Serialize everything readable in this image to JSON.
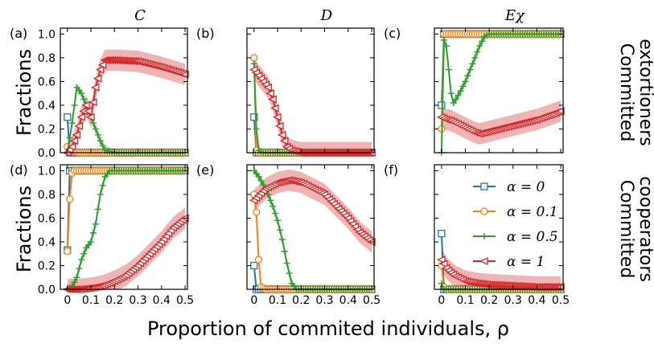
{
  "figure": {
    "col_titles": [
      "C",
      "D",
      "Eχ"
    ],
    "row_labels": [
      [
        "Committed",
        "extortioners"
      ],
      [
        "Committed",
        "cooperators"
      ]
    ],
    "ylabel": "Fractions",
    "xlabel": "Proportion of commited individuals, ρ",
    "colors": {
      "alpha_0": "#1f77b4",
      "alpha_0_1": "#ff7f0e",
      "alpha_0_5": "#2ca02c",
      "alpha_1": "#d62728"
    }
  },
  "chart_data": [
    {
      "panel": "(a)",
      "type": "line",
      "ylim": [
        0,
        1.05
      ],
      "xlim": [
        -0.03,
        0.51
      ],
      "xticks": [
        0,
        0.1,
        0.2,
        0.3,
        0.4,
        0.5
      ],
      "yticks": [
        0.0,
        0.2,
        0.4,
        0.6,
        0.8,
        1.0
      ],
      "series": [
        {
          "name": "α = 0",
          "x": [
            0,
            0.01,
            0.02,
            0.03,
            0.05,
            0.1,
            0.2,
            0.3,
            0.4,
            0.5
          ],
          "values": [
            0.3,
            0.0,
            0.0,
            0.0,
            0.0,
            0.0,
            0.0,
            0.0,
            0.0,
            0.0
          ]
        },
        {
          "name": "α = 0.1",
          "x": [
            0,
            0.01,
            0.02,
            0.05,
            0.1,
            0.2,
            0.3,
            0.4,
            0.5
          ],
          "values": [
            0.05,
            0.02,
            0.01,
            0.0,
            0.0,
            0.0,
            0.0,
            0.0,
            0.0
          ]
        },
        {
          "name": "α = 0.5",
          "x": [
            0,
            0.02,
            0.04,
            0.06,
            0.08,
            0.1,
            0.12,
            0.14,
            0.16,
            0.2,
            0.3,
            0.4,
            0.5
          ],
          "values": [
            0.0,
            0.25,
            0.55,
            0.5,
            0.4,
            0.3,
            0.2,
            0.1,
            0.02,
            0.0,
            0.0,
            0.0,
            0.0
          ]
        },
        {
          "name": "α = 1",
          "x": [
            0,
            0.02,
            0.04,
            0.06,
            0.08,
            0.1,
            0.12,
            0.14,
            0.16,
            0.2,
            0.3,
            0.4,
            0.5
          ],
          "values": [
            0.0,
            0.05,
            0.15,
            0.3,
            0.4,
            0.3,
            0.55,
            0.7,
            0.78,
            0.78,
            0.77,
            0.72,
            0.66
          ]
        }
      ]
    },
    {
      "panel": "(b)",
      "type": "line",
      "ylim": [
        0,
        1.05
      ],
      "xlim": [
        -0.03,
        0.51
      ],
      "xticks": [
        0,
        0.1,
        0.2,
        0.3,
        0.4,
        0.5
      ],
      "yticks": [
        0.0,
        0.2,
        0.4,
        0.6,
        0.8,
        1.0
      ],
      "series": [
        {
          "name": "α = 0",
          "x": [
            0,
            0.01,
            0.02,
            0.05,
            0.1,
            0.2,
            0.3,
            0.4,
            0.5
          ],
          "values": [
            0.3,
            0.0,
            0.0,
            0.0,
            0.0,
            0.0,
            0.0,
            0.0,
            0.0
          ]
        },
        {
          "name": "α = 0.1",
          "x": [
            0,
            0.01,
            0.02,
            0.05,
            0.1,
            0.2,
            0.3,
            0.4,
            0.5
          ],
          "values": [
            0.8,
            0.02,
            0.0,
            0.0,
            0.0,
            0.0,
            0.0,
            0.0,
            0.0
          ]
        },
        {
          "name": "α = 0.5",
          "x": [
            0,
            0.01,
            0.02,
            0.04,
            0.06,
            0.08,
            0.1,
            0.2,
            0.3,
            0.4,
            0.5
          ],
          "values": [
            0.75,
            0.2,
            0.02,
            0.0,
            0.0,
            0.0,
            0.0,
            0.0,
            0.0,
            0.0,
            0.0
          ]
        },
        {
          "name": "α = 1",
          "x": [
            0,
            0.02,
            0.04,
            0.06,
            0.08,
            0.1,
            0.12,
            0.14,
            0.16,
            0.2,
            0.3,
            0.4,
            0.5
          ],
          "values": [
            0.7,
            0.65,
            0.6,
            0.55,
            0.45,
            0.3,
            0.15,
            0.05,
            0.02,
            0.0,
            0.0,
            0.0,
            0.0
          ]
        }
      ]
    },
    {
      "panel": "(c)",
      "type": "line",
      "ylim": [
        0,
        1.05
      ],
      "xlim": [
        -0.03,
        0.51
      ],
      "xticks": [
        0,
        0.1,
        0.2,
        0.3,
        0.4,
        0.5
      ],
      "yticks": [
        0.0,
        0.2,
        0.4,
        0.6,
        0.8,
        1.0
      ],
      "series": [
        {
          "name": "α = 0",
          "x": [
            0,
            0.01,
            0.02,
            0.05,
            0.1,
            0.2,
            0.3,
            0.4,
            0.5
          ],
          "values": [
            0.4,
            1.0,
            1.0,
            1.0,
            1.0,
            1.0,
            1.0,
            1.0,
            1.0
          ]
        },
        {
          "name": "α = 0.1",
          "x": [
            0,
            0.01,
            0.02,
            0.05,
            0.1,
            0.2,
            0.3,
            0.4,
            0.5
          ],
          "values": [
            0.2,
            1.0,
            1.0,
            1.0,
            1.0,
            1.0,
            1.0,
            1.0,
            1.0
          ]
        },
        {
          "name": "α = 0.5",
          "x": [
            0,
            0.01,
            0.02,
            0.03,
            0.04,
            0.05,
            0.06,
            0.08,
            0.1,
            0.12,
            0.14,
            0.16,
            0.18,
            0.2,
            0.3,
            0.4,
            0.5
          ],
          "values": [
            0.0,
            0.95,
            0.9,
            0.7,
            0.5,
            0.42,
            0.45,
            0.52,
            0.6,
            0.7,
            0.8,
            0.9,
            0.98,
            1.0,
            1.0,
            1.0,
            1.0
          ]
        },
        {
          "name": "α = 1",
          "x": [
            0,
            0.02,
            0.04,
            0.06,
            0.08,
            0.1,
            0.12,
            0.14,
            0.16,
            0.2,
            0.3,
            0.4,
            0.5
          ],
          "values": [
            0.3,
            0.28,
            0.27,
            0.25,
            0.23,
            0.21,
            0.19,
            0.17,
            0.16,
            0.18,
            0.23,
            0.28,
            0.35
          ]
        }
      ]
    },
    {
      "panel": "(d)",
      "type": "line",
      "ylim": [
        0,
        1.05
      ],
      "xlim": [
        -0.03,
        0.51
      ],
      "xticks": [
        0,
        0.1,
        0.2,
        0.3,
        0.4,
        0.5
      ],
      "yticks": [
        0.0,
        0.2,
        0.4,
        0.6,
        0.8,
        1.0
      ],
      "series": [
        {
          "name": "α = 0",
          "x": [
            0,
            0.01,
            0.02,
            0.05,
            0.1,
            0.2,
            0.3,
            0.4,
            0.5
          ],
          "values": [
            0.33,
            1.0,
            1.0,
            1.0,
            1.0,
            1.0,
            1.0,
            1.0,
            1.0
          ]
        },
        {
          "name": "α = 0.1",
          "x": [
            0,
            0.01,
            0.02,
            0.03,
            0.05,
            0.1,
            0.2,
            0.3,
            0.4,
            0.5
          ],
          "values": [
            0.32,
            0.76,
            0.98,
            1.0,
            1.0,
            1.0,
            1.0,
            1.0,
            1.0,
            1.0
          ]
        },
        {
          "name": "α = 0.5",
          "x": [
            0,
            0.02,
            0.04,
            0.06,
            0.08,
            0.1,
            0.12,
            0.14,
            0.16,
            0.18,
            0.2,
            0.3,
            0.4,
            0.5
          ],
          "values": [
            0.0,
            0.02,
            0.1,
            0.25,
            0.35,
            0.4,
            0.55,
            0.8,
            0.95,
            1.0,
            1.0,
            1.0,
            1.0,
            1.0
          ]
        },
        {
          "name": "α = 1",
          "x": [
            0,
            0.05,
            0.1,
            0.15,
            0.2,
            0.25,
            0.3,
            0.35,
            0.4,
            0.45,
            0.5
          ],
          "values": [
            0.0,
            0.0,
            0.01,
            0.03,
            0.07,
            0.12,
            0.2,
            0.3,
            0.4,
            0.52,
            0.6
          ]
        }
      ]
    },
    {
      "panel": "(e)",
      "type": "line",
      "ylim": [
        0,
        1.05
      ],
      "xlim": [
        -0.03,
        0.51
      ],
      "xticks": [
        0,
        0.1,
        0.2,
        0.3,
        0.4,
        0.5
      ],
      "yticks": [
        0.0,
        0.2,
        0.4,
        0.6,
        0.8,
        1.0
      ],
      "series": [
        {
          "name": "α = 0",
          "x": [
            0,
            0.01,
            0.02,
            0.05,
            0.1,
            0.2,
            0.3,
            0.4,
            0.5
          ],
          "values": [
            0.2,
            0.0,
            0.0,
            0.0,
            0.0,
            0.0,
            0.0,
            0.0,
            0.0
          ]
        },
        {
          "name": "α = 0.1",
          "x": [
            0,
            0.01,
            0.02,
            0.03,
            0.05,
            0.1,
            0.2,
            0.3,
            0.4,
            0.5
          ],
          "values": [
            0.8,
            0.65,
            0.25,
            0.02,
            0.0,
            0.0,
            0.0,
            0.0,
            0.0,
            0.0
          ]
        },
        {
          "name": "α = 0.5",
          "x": [
            0,
            0.02,
            0.04,
            0.06,
            0.08,
            0.1,
            0.12,
            0.14,
            0.16,
            0.18,
            0.2,
            0.3,
            0.4,
            0.5
          ],
          "values": [
            1.0,
            0.95,
            0.88,
            0.8,
            0.7,
            0.58,
            0.42,
            0.22,
            0.05,
            0.0,
            0.0,
            0.0,
            0.0,
            0.0
          ]
        },
        {
          "name": "α = 1",
          "x": [
            0,
            0.05,
            0.1,
            0.15,
            0.2,
            0.25,
            0.3,
            0.35,
            0.4,
            0.45,
            0.5
          ],
          "values": [
            0.75,
            0.85,
            0.9,
            0.92,
            0.9,
            0.85,
            0.8,
            0.7,
            0.6,
            0.48,
            0.4
          ]
        }
      ]
    },
    {
      "panel": "(f)",
      "type": "line",
      "ylim": [
        0,
        1.05
      ],
      "xlim": [
        -0.03,
        0.51
      ],
      "xticks": [
        0,
        0.1,
        0.2,
        0.3,
        0.4,
        0.5
      ],
      "yticks": [
        0.0,
        0.2,
        0.4,
        0.6,
        0.8,
        1.0
      ],
      "series": [
        {
          "name": "α = 0",
          "x": [
            0,
            0.01,
            0.02,
            0.05,
            0.1,
            0.2,
            0.3,
            0.4,
            0.5
          ],
          "values": [
            0.47,
            0.0,
            0.0,
            0.0,
            0.0,
            0.0,
            0.0,
            0.0,
            0.0
          ]
        },
        {
          "name": "α = 0.1",
          "x": [
            0,
            0.01,
            0.02,
            0.05,
            0.1,
            0.2,
            0.3,
            0.4,
            0.5
          ],
          "values": [
            0.2,
            0.02,
            0.0,
            0.0,
            0.0,
            0.0,
            0.0,
            0.0,
            0.0
          ]
        },
        {
          "name": "α = 0.5",
          "x": [
            0,
            0.01,
            0.02,
            0.05,
            0.1,
            0.2,
            0.3,
            0.4,
            0.5
          ],
          "values": [
            0.05,
            0.0,
            0.0,
            0.0,
            0.0,
            0.0,
            0.0,
            0.0,
            0.0
          ]
        },
        {
          "name": "α = 1",
          "x": [
            0,
            0.02,
            0.04,
            0.06,
            0.08,
            0.1,
            0.15,
            0.2,
            0.3,
            0.4,
            0.5
          ],
          "values": [
            0.25,
            0.18,
            0.14,
            0.11,
            0.09,
            0.07,
            0.05,
            0.04,
            0.03,
            0.02,
            0.02
          ]
        }
      ]
    }
  ],
  "legend": {
    "placement": "panel (f), top-right",
    "entries": [
      "α = 0",
      "α = 0.1",
      "α = 0.5",
      "α = 1"
    ]
  }
}
